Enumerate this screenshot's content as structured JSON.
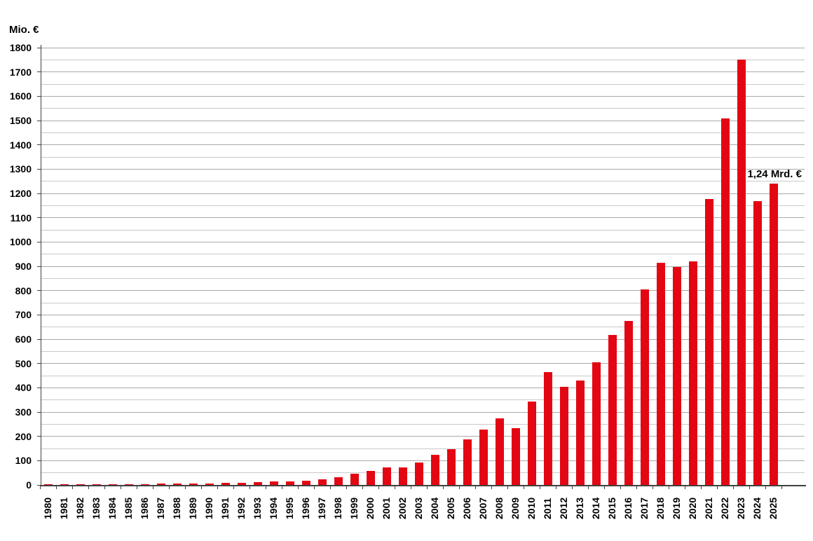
{
  "chart_data": {
    "type": "bar",
    "title": "",
    "ylabel": "Mio. €",
    "xlabel": "",
    "categories": [
      "1980",
      "1981",
      "1982",
      "1983",
      "1984",
      "1985",
      "1986",
      "1987",
      "1988",
      "1989",
      "1990",
      "1991",
      "1992",
      "1993",
      "1994",
      "1995",
      "1996",
      "1997",
      "1998",
      "1999",
      "2000",
      "2001",
      "2002",
      "2003",
      "2004",
      "2005",
      "2006",
      "2007",
      "2008",
      "2009",
      "2010",
      "2011",
      "2012",
      "2013",
      "2014",
      "2015",
      "2016",
      "2017",
      "2018",
      "2019",
      "2020",
      "2021",
      "2022",
      "2023",
      "2024",
      "2025"
    ],
    "values": [
      1,
      1,
      2,
      2,
      3,
      3,
      4,
      5,
      5,
      6,
      7,
      8,
      10,
      11,
      13,
      15,
      18,
      22,
      32,
      46,
      58,
      71,
      72,
      93,
      124,
      147,
      188,
      228,
      274,
      234,
      344,
      463,
      405,
      431,
      506,
      616,
      676,
      806,
      913,
      898,
      920,
      1178,
      1510,
      1752,
      1168,
      1240
    ],
    "ylim": [
      0,
      1800
    ],
    "y_major_step": 100,
    "y_minor_step": 50,
    "y_tick_labels": [
      "0",
      "100",
      "200",
      "300",
      "400",
      "500",
      "600",
      "700",
      "800",
      "900",
      "1000",
      "1100",
      "1200",
      "1300",
      "1400",
      "1500",
      "1600",
      "1700",
      "1800"
    ],
    "grid": "horizontal, minor every 50 / major every 100",
    "legend": "none",
    "annotation": {
      "text": "1,24 Mrd. €",
      "category": "2025",
      "value_mio": 1240
    },
    "colors": {
      "bar": "#e30613",
      "grid_major": "#a9a9a9",
      "grid_minor": "#c9c9c9",
      "axis": "#404040",
      "text": "#000000",
      "background": "#ffffff"
    }
  }
}
